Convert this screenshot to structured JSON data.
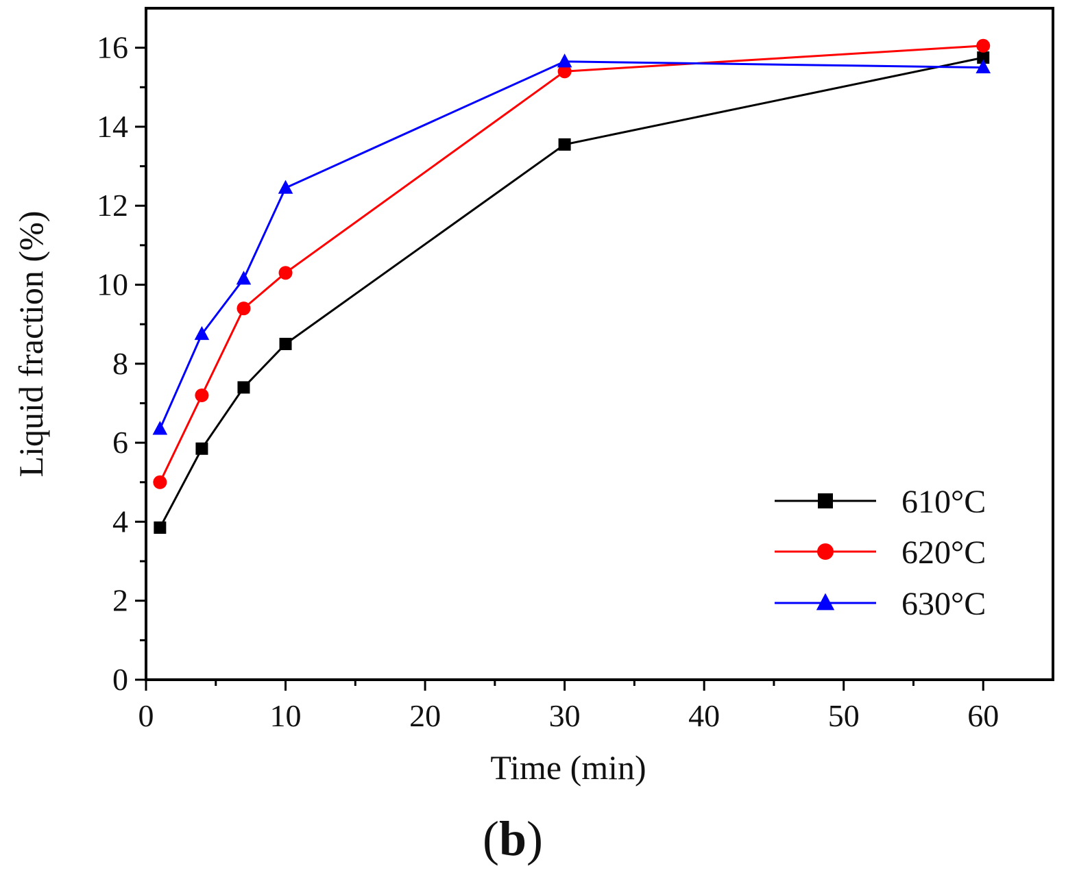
{
  "chart_data": {
    "type": "line",
    "title": "",
    "xlabel": "Time (min)",
    "ylabel": "Liquid fraction (%)",
    "xlim": [
      0,
      65
    ],
    "ylim": [
      0,
      17
    ],
    "xticks": [
      0,
      10,
      20,
      30,
      40,
      50,
      60
    ],
    "yticks": [
      0,
      2,
      4,
      6,
      8,
      10,
      12,
      14,
      16
    ],
    "grid": false,
    "legend_position": "bottom-right",
    "series": [
      {
        "name": "610°C",
        "color": "#000000",
        "marker": "square",
        "x": [
          1,
          4,
          7,
          10,
          30,
          60
        ],
        "values": [
          3.85,
          5.85,
          7.4,
          8.5,
          13.55,
          15.75
        ]
      },
      {
        "name": "620°C",
        "color": "#ff0000",
        "marker": "circle",
        "x": [
          1,
          4,
          7,
          10,
          30,
          60
        ],
        "values": [
          5.0,
          7.2,
          9.4,
          10.3,
          15.4,
          16.05
        ]
      },
      {
        "name": "630°C",
        "color": "#0000ff",
        "marker": "triangle",
        "x": [
          1,
          4,
          7,
          10,
          30,
          60
        ],
        "values": [
          6.35,
          8.75,
          10.15,
          12.45,
          15.65,
          15.5
        ]
      }
    ]
  },
  "panel_label": {
    "open": "(",
    "letter": "b",
    "close": ")"
  }
}
